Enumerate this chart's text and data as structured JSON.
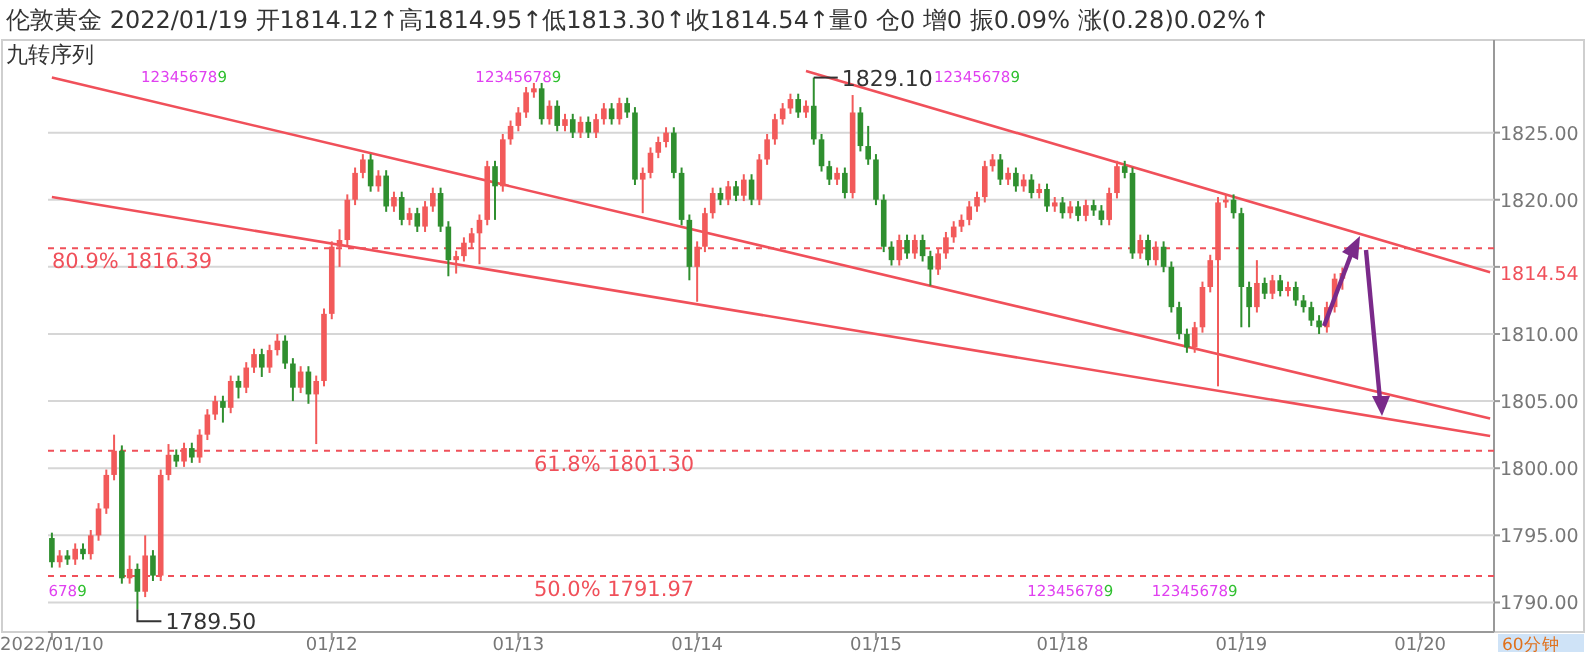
{
  "chart_data": {
    "type": "candlestick",
    "title": "伦敦黄金 2022/01/19 开1814.12↑高1814.95↑低1813.30↑收1814.54↑量0 仓0 增0 振0.09% 涨(0.28)0.02%↑",
    "subtitle": "九转序列",
    "categories": [
      "2022/01/10",
      null,
      null,
      null,
      null,
      null,
      null,
      null,
      null,
      null,
      null,
      null,
      null,
      null,
      null,
      null,
      null,
      null,
      null,
      null,
      null,
      null,
      null,
      null,
      null,
      null,
      null,
      null,
      null,
      null,
      null,
      null,
      null,
      null,
      null,
      null,
      "01/12",
      null,
      null,
      null,
      null,
      null,
      null,
      null,
      null,
      null,
      null,
      null,
      null,
      null,
      null,
      null,
      null,
      null,
      null,
      null,
      null,
      null,
      null,
      null,
      "01/13",
      null,
      null,
      null,
      null,
      null,
      null,
      null,
      null,
      null,
      null,
      null,
      null,
      null,
      null,
      null,
      null,
      null,
      null,
      null,
      null,
      null,
      null,
      "01/14",
      null,
      null,
      null,
      null,
      null,
      null,
      null,
      null,
      null,
      null,
      null,
      null,
      null,
      null,
      null,
      null,
      null,
      null,
      null,
      null,
      null,
      null,
      "01/15",
      null,
      null,
      null,
      null,
      null,
      null,
      null,
      null,
      null,
      null,
      null,
      null,
      null,
      null,
      null,
      null,
      null,
      null,
      null,
      null,
      null,
      null,
      null,
      "01/18",
      null,
      null,
      null,
      null,
      null,
      null,
      null,
      null,
      null,
      null,
      null,
      null,
      null,
      null,
      null,
      null,
      null,
      null,
      null,
      null,
      null,
      null,
      "01/19",
      null,
      null,
      null,
      null,
      null,
      null,
      null,
      null,
      null,
      null,
      null,
      null,
      null,
      null,
      null,
      null,
      null,
      null,
      null,
      null,
      null,
      null,
      "01/20",
      null,
      null,
      null,
      null,
      null,
      null,
      null,
      null,
      null
    ],
    "ohlc": [
      [
        1794.8,
        1795.2,
        1792.6,
        1793.0
      ],
      [
        1793.0,
        1793.9,
        1792.6,
        1793.5
      ],
      [
        1793.5,
        1793.9,
        1792.8,
        1793.2
      ],
      [
        1793.2,
        1794.4,
        1792.8,
        1794.0
      ],
      [
        1794.0,
        1794.4,
        1793.2,
        1793.6
      ],
      [
        1793.6,
        1795.4,
        1793.2,
        1795.0
      ],
      [
        1795.0,
        1797.4,
        1794.6,
        1797.0
      ],
      [
        1797.0,
        1799.9,
        1796.6,
        1799.5
      ],
      [
        1799.5,
        1802.5,
        1799.1,
        1801.3
      ],
      [
        1801.3,
        1801.7,
        1791.4,
        1791.8
      ],
      [
        1791.8,
        1793.5,
        1791.4,
        1792.5
      ],
      [
        1792.5,
        1792.9,
        1789.5,
        1790.8
      ],
      [
        1790.8,
        1795.0,
        1790.4,
        1793.5
      ],
      [
        1793.5,
        1793.9,
        1791.6,
        1792.0
      ],
      [
        1792.0,
        1799.9,
        1791.6,
        1799.5
      ],
      [
        1799.5,
        1801.8,
        1799.1,
        1801.0
      ],
      [
        1801.0,
        1801.4,
        1800.1,
        1800.5
      ],
      [
        1800.5,
        1801.9,
        1800.1,
        1801.5
      ],
      [
        1801.5,
        1801.9,
        1800.4,
        1800.8
      ],
      [
        1800.8,
        1802.9,
        1800.4,
        1802.5
      ],
      [
        1802.5,
        1804.4,
        1802.1,
        1804.0
      ],
      [
        1804.0,
        1805.4,
        1803.6,
        1805.0
      ],
      [
        1805.0,
        1805.4,
        1803.4,
        1804.5
      ],
      [
        1804.5,
        1806.9,
        1804.1,
        1806.5
      ],
      [
        1806.5,
        1806.9,
        1805.2,
        1806.0
      ],
      [
        1806.0,
        1807.9,
        1805.6,
        1807.5
      ],
      [
        1807.5,
        1808.9,
        1807.1,
        1808.5
      ],
      [
        1808.5,
        1808.9,
        1806.8,
        1807.5
      ],
      [
        1807.5,
        1809.2,
        1807.1,
        1808.8
      ],
      [
        1808.8,
        1810.0,
        1808.4,
        1809.5
      ],
      [
        1809.5,
        1809.9,
        1807.4,
        1807.8
      ],
      [
        1807.8,
        1808.2,
        1805.0,
        1806.0
      ],
      [
        1806.0,
        1807.6,
        1805.6,
        1807.2
      ],
      [
        1807.2,
        1807.6,
        1804.8,
        1805.5
      ],
      [
        1805.5,
        1806.9,
        1801.8,
        1806.5
      ],
      [
        1806.5,
        1811.9,
        1806.1,
        1811.5
      ],
      [
        1811.5,
        1816.9,
        1811.1,
        1816.5
      ],
      [
        1816.5,
        1817.8,
        1815.0,
        1817.0
      ],
      [
        1817.0,
        1820.4,
        1816.6,
        1820.0
      ],
      [
        1820.0,
        1822.4,
        1819.6,
        1822.0
      ],
      [
        1822.0,
        1823.4,
        1821.6,
        1823.0
      ],
      [
        1823.0,
        1823.4,
        1820.6,
        1821.0
      ],
      [
        1821.0,
        1822.2,
        1820.6,
        1821.8
      ],
      [
        1821.8,
        1822.2,
        1819.1,
        1819.5
      ],
      [
        1819.5,
        1820.6,
        1819.1,
        1820.2
      ],
      [
        1820.2,
        1820.6,
        1818.1,
        1818.5
      ],
      [
        1818.5,
        1819.4,
        1818.1,
        1819.0
      ],
      [
        1819.0,
        1819.4,
        1817.6,
        1818.0
      ],
      [
        1818.0,
        1819.9,
        1817.6,
        1819.5
      ],
      [
        1819.5,
        1820.9,
        1819.1,
        1820.5
      ],
      [
        1820.5,
        1820.9,
        1817.6,
        1818.0
      ],
      [
        1818.0,
        1818.4,
        1814.3,
        1815.5
      ],
      [
        1815.5,
        1816.2,
        1814.5,
        1815.8
      ],
      [
        1815.8,
        1817.2,
        1815.4,
        1816.8
      ],
      [
        1816.8,
        1817.9,
        1816.4,
        1817.5
      ],
      [
        1817.5,
        1818.9,
        1815.2,
        1818.5
      ],
      [
        1818.5,
        1822.9,
        1818.1,
        1822.5
      ],
      [
        1822.5,
        1822.9,
        1818.5,
        1821.0
      ],
      [
        1821.0,
        1824.9,
        1820.6,
        1824.5
      ],
      [
        1824.5,
        1825.9,
        1824.1,
        1825.5
      ],
      [
        1825.5,
        1826.9,
        1825.1,
        1826.5
      ],
      [
        1826.5,
        1828.4,
        1826.1,
        1828.0
      ],
      [
        1828.0,
        1828.7,
        1827.6,
        1828.3
      ],
      [
        1828.3,
        1828.7,
        1825.6,
        1826.0
      ],
      [
        1826.0,
        1827.4,
        1825.6,
        1827.0
      ],
      [
        1827.0,
        1827.4,
        1825.1,
        1825.5
      ],
      [
        1825.5,
        1826.4,
        1825.1,
        1826.0
      ],
      [
        1826.0,
        1826.4,
        1824.6,
        1825.0
      ],
      [
        1825.0,
        1826.2,
        1824.6,
        1825.8
      ],
      [
        1825.8,
        1826.2,
        1824.6,
        1825.0
      ],
      [
        1825.0,
        1826.4,
        1824.6,
        1826.0
      ],
      [
        1826.0,
        1827.2,
        1825.6,
        1826.8
      ],
      [
        1826.8,
        1827.2,
        1825.6,
        1826.0
      ],
      [
        1826.0,
        1827.6,
        1825.6,
        1827.2
      ],
      [
        1827.2,
        1827.6,
        1826.1,
        1826.5
      ],
      [
        1826.5,
        1826.9,
        1821.1,
        1821.5
      ],
      [
        1821.5,
        1822.4,
        1819.0,
        1822.0
      ],
      [
        1822.0,
        1823.9,
        1821.6,
        1823.5
      ],
      [
        1823.5,
        1824.7,
        1823.1,
        1824.3
      ],
      [
        1824.3,
        1825.4,
        1823.9,
        1825.0
      ],
      [
        1825.0,
        1825.4,
        1821.6,
        1822.0
      ],
      [
        1822.0,
        1822.4,
        1818.1,
        1818.5
      ],
      [
        1818.5,
        1818.9,
        1814.0,
        1815.0
      ],
      [
        1815.0,
        1816.9,
        1812.4,
        1816.5
      ],
      [
        1816.5,
        1819.4,
        1816.1,
        1819.0
      ],
      [
        1819.0,
        1820.9,
        1818.6,
        1820.5
      ],
      [
        1820.5,
        1820.9,
        1819.6,
        1820.0
      ],
      [
        1820.0,
        1821.4,
        1819.6,
        1821.0
      ],
      [
        1821.0,
        1821.4,
        1819.9,
        1820.3
      ],
      [
        1820.3,
        1821.9,
        1819.9,
        1821.5
      ],
      [
        1821.5,
        1821.9,
        1819.6,
        1820.0
      ],
      [
        1820.0,
        1823.4,
        1819.6,
        1823.0
      ],
      [
        1823.0,
        1824.9,
        1822.6,
        1824.5
      ],
      [
        1824.5,
        1826.4,
        1824.1,
        1826.0
      ],
      [
        1826.0,
        1827.2,
        1825.6,
        1826.8
      ],
      [
        1826.8,
        1827.9,
        1826.4,
        1827.5
      ],
      [
        1827.5,
        1827.9,
        1826.1,
        1826.5
      ],
      [
        1826.5,
        1827.4,
        1826.1,
        1827.0
      ],
      [
        1827.0,
        1829.1,
        1824.1,
        1824.5
      ],
      [
        1824.5,
        1824.9,
        1822.1,
        1822.5
      ],
      [
        1822.5,
        1822.9,
        1821.1,
        1821.5
      ],
      [
        1821.5,
        1822.4,
        1821.1,
        1822.0
      ],
      [
        1822.0,
        1822.4,
        1820.1,
        1820.5
      ],
      [
        1820.5,
        1827.8,
        1820.1,
        1826.5
      ],
      [
        1826.5,
        1826.9,
        1823.6,
        1824.0
      ],
      [
        1824.0,
        1825.5,
        1822.6,
        1823.0
      ],
      [
        1823.0,
        1823.4,
        1819.6,
        1820.0
      ],
      [
        1820.0,
        1820.4,
        1816.1,
        1816.5
      ],
      [
        1816.5,
        1816.9,
        1815.1,
        1815.5
      ],
      [
        1815.5,
        1817.4,
        1815.1,
        1817.0
      ],
      [
        1817.0,
        1817.4,
        1815.6,
        1816.0
      ],
      [
        1816.0,
        1817.4,
        1815.6,
        1817.0
      ],
      [
        1817.0,
        1817.4,
        1815.4,
        1815.8
      ],
      [
        1815.8,
        1816.2,
        1813.6,
        1814.8
      ],
      [
        1814.8,
        1816.4,
        1814.4,
        1816.0
      ],
      [
        1816.0,
        1817.6,
        1815.6,
        1817.2
      ],
      [
        1817.2,
        1818.4,
        1816.8,
        1818.0
      ],
      [
        1818.0,
        1818.9,
        1817.6,
        1818.5
      ],
      [
        1818.5,
        1819.9,
        1818.1,
        1819.5
      ],
      [
        1819.5,
        1820.6,
        1819.1,
        1820.2
      ],
      [
        1820.2,
        1822.9,
        1819.8,
        1822.5
      ],
      [
        1822.5,
        1823.4,
        1822.1,
        1823.0
      ],
      [
        1823.0,
        1823.4,
        1821.1,
        1821.5
      ],
      [
        1821.5,
        1822.4,
        1821.1,
        1822.0
      ],
      [
        1822.0,
        1822.4,
        1820.6,
        1821.0
      ],
      [
        1821.0,
        1821.9,
        1820.6,
        1821.5
      ],
      [
        1821.5,
        1821.9,
        1820.1,
        1820.5
      ],
      [
        1820.5,
        1821.2,
        1820.1,
        1820.8
      ],
      [
        1820.8,
        1821.2,
        1819.1,
        1819.5
      ],
      [
        1819.5,
        1820.2,
        1819.1,
        1819.8
      ],
      [
        1819.8,
        1820.2,
        1818.6,
        1819.0
      ],
      [
        1819.0,
        1819.9,
        1818.6,
        1819.5
      ],
      [
        1819.5,
        1819.9,
        1818.4,
        1818.8
      ],
      [
        1818.8,
        1820.0,
        1818.4,
        1819.6
      ],
      [
        1819.6,
        1820.0,
        1818.8,
        1819.2
      ],
      [
        1819.2,
        1819.6,
        1818.1,
        1818.5
      ],
      [
        1818.5,
        1820.9,
        1818.1,
        1820.5
      ],
      [
        1820.5,
        1822.9,
        1820.1,
        1822.5
      ],
      [
        1822.5,
        1822.9,
        1821.6,
        1822.0
      ],
      [
        1822.0,
        1822.4,
        1815.6,
        1816.0
      ],
      [
        1816.0,
        1817.4,
        1815.6,
        1817.0
      ],
      [
        1817.0,
        1817.4,
        1815.1,
        1815.5
      ],
      [
        1815.5,
        1816.9,
        1815.1,
        1816.5
      ],
      [
        1816.5,
        1816.9,
        1814.6,
        1815.0
      ],
      [
        1815.0,
        1815.4,
        1811.6,
        1812.0
      ],
      [
        1812.0,
        1812.4,
        1809.6,
        1810.0
      ],
      [
        1810.0,
        1810.4,
        1808.6,
        1809.0
      ],
      [
        1809.0,
        1810.9,
        1808.6,
        1810.5
      ],
      [
        1810.5,
        1813.9,
        1810.1,
        1813.5
      ],
      [
        1813.5,
        1815.9,
        1813.1,
        1815.5
      ],
      [
        1815.5,
        1820.2,
        1806.1,
        1819.8
      ],
      [
        1819.8,
        1820.4,
        1819.4,
        1820.0
      ],
      [
        1820.0,
        1820.4,
        1818.6,
        1819.0
      ],
      [
        1819.0,
        1819.4,
        1810.5,
        1813.5
      ],
      [
        1813.5,
        1813.9,
        1810.5,
        1812.0
      ],
      [
        1812.0,
        1815.5,
        1811.6,
        1813.8
      ],
      [
        1813.8,
        1814.2,
        1812.6,
        1813.0
      ],
      [
        1813.0,
        1814.4,
        1812.6,
        1814.0
      ],
      [
        1814.0,
        1814.4,
        1812.8,
        1813.2
      ],
      [
        1813.2,
        1813.9,
        1812.8,
        1813.5
      ],
      [
        1813.5,
        1813.9,
        1812.1,
        1812.5
      ],
      [
        1812.5,
        1812.9,
        1811.6,
        1812.0
      ],
      [
        1812.0,
        1812.4,
        1810.6,
        1811.0
      ],
      [
        1811.0,
        1811.4,
        1810.0,
        1810.5
      ],
      [
        1810.5,
        1812.4,
        1810.1,
        1812.0
      ],
      [
        1812.0,
        1814.5,
        1811.6,
        1814.12
      ],
      [
        1814.12,
        1814.95,
        1813.3,
        1814.54
      ],
      null,
      null,
      null,
      null,
      null,
      null,
      null,
      null,
      null,
      null,
      null,
      null,
      null,
      null,
      null,
      null,
      null,
      null,
      null
    ],
    "series": [
      {
        "type": "line",
        "color": "#f0505a",
        "values": [
          1829.1,
          null,
          null,
          null,
          null,
          null,
          null,
          null,
          null,
          null,
          null,
          null,
          null,
          null,
          null,
          null,
          null,
          null,
          null,
          null,
          null,
          null,
          null,
          null,
          null,
          null,
          null,
          null,
          null,
          null,
          null,
          null,
          null,
          null,
          null,
          null,
          null,
          null,
          null,
          null,
          null,
          null,
          null,
          null,
          null,
          null,
          null,
          null,
          null,
          null,
          null,
          null,
          null,
          null,
          null,
          null,
          null,
          null,
          null,
          null,
          null,
          null,
          null,
          null,
          null,
          null,
          null,
          null,
          null,
          null,
          null,
          null,
          null,
          null,
          null,
          null,
          null,
          null,
          null,
          null,
          null,
          null,
          null,
          null,
          null,
          null,
          null,
          null,
          null,
          null,
          null,
          null,
          null,
          null,
          null,
          null,
          null,
          null,
          null,
          null,
          null,
          null,
          null,
          null,
          null,
          null,
          null,
          null,
          null,
          null,
          null,
          null,
          null,
          null,
          null,
          null,
          null,
          null,
          null,
          null,
          null,
          null,
          null,
          null,
          null,
          null,
          null,
          null,
          null,
          null,
          null,
          null,
          null,
          null,
          null,
          null,
          null,
          null,
          null,
          null,
          null,
          null,
          null,
          null,
          null,
          null,
          null,
          null,
          null,
          null,
          null,
          null,
          null,
          null,
          null,
          null,
          null,
          null,
          null,
          null,
          null,
          null,
          null,
          null,
          null,
          null,
          null,
          null,
          null,
          null,
          null,
          null,
          null,
          null,
          null,
          null,
          null,
          null,
          null,
          null,
          null,
          null,
          null,
          null,
          null,
          1803.7
        ]
      },
      {
        "type": "line",
        "color": "#f0505a",
        "values": [
          1820.2,
          null,
          null,
          null,
          null,
          null,
          null,
          null,
          null,
          null,
          null,
          null,
          null,
          null,
          null,
          null,
          null,
          null,
          null,
          null,
          null,
          null,
          null,
          null,
          null,
          null,
          null,
          null,
          null,
          null,
          null,
          null,
          null,
          null,
          null,
          null,
          null,
          null,
          null,
          null,
          null,
          null,
          null,
          null,
          null,
          null,
          null,
          null,
          null,
          null,
          null,
          null,
          null,
          null,
          null,
          null,
          null,
          null,
          null,
          null,
          null,
          null,
          null,
          null,
          null,
          null,
          null,
          null,
          null,
          null,
          null,
          null,
          null,
          null,
          null,
          null,
          null,
          null,
          null,
          null,
          null,
          null,
          null,
          null,
          null,
          null,
          null,
          null,
          null,
          null,
          null,
          null,
          null,
          null,
          null,
          null,
          null,
          null,
          null,
          null,
          null,
          null,
          null,
          null,
          null,
          null,
          null,
          null,
          null,
          null,
          null,
          null,
          null,
          null,
          null,
          null,
          null,
          null,
          null,
          null,
          null,
          null,
          null,
          null,
          null,
          null,
          null,
          null,
          null,
          null,
          null,
          null,
          null,
          null,
          null,
          null,
          null,
          null,
          null,
          null,
          null,
          null,
          null,
          null,
          null,
          null,
          null,
          null,
          null,
          null,
          null,
          null,
          null,
          null,
          null,
          null,
          null,
          null,
          null,
          null,
          null,
          null,
          null,
          null,
          null,
          null,
          null,
          null,
          null,
          null,
          null,
          null,
          null,
          null,
          null,
          null,
          null,
          null,
          null,
          null,
          null,
          null,
          null,
          null,
          null,
          1802.4
        ]
      },
      {
        "type": "line",
        "color": "#f0505a",
        "values": [
          null,
          null,
          null,
          null,
          null,
          null,
          null,
          null,
          null,
          null,
          null,
          null,
          null,
          null,
          null,
          null,
          null,
          null,
          null,
          null,
          null,
          null,
          null,
          null,
          null,
          null,
          null,
          null,
          null,
          null,
          null,
          null,
          null,
          null,
          null,
          null,
          null,
          null,
          null,
          null,
          null,
          null,
          null,
          null,
          null,
          null,
          null,
          null,
          null,
          null,
          null,
          null,
          null,
          null,
          null,
          null,
          null,
          null,
          null,
          null,
          null,
          null,
          null,
          null,
          null,
          null,
          null,
          null,
          null,
          null,
          null,
          null,
          null,
          null,
          null,
          null,
          null,
          null,
          null,
          null,
          null,
          null,
          null,
          null,
          null,
          null,
          null,
          null,
          null,
          null,
          null,
          null,
          null,
          null,
          null,
          null,
          null,
          1829.6,
          null,
          null,
          null,
          null,
          null,
          null,
          null,
          null,
          null,
          null,
          null,
          null,
          null,
          null,
          null,
          null,
          null,
          null,
          null,
          null,
          null,
          null,
          null,
          null,
          null,
          null,
          null,
          null,
          null,
          null,
          null,
          null,
          null,
          null,
          null,
          null,
          null,
          null,
          null,
          null,
          null,
          null,
          null,
          null,
          null,
          null,
          null,
          null,
          null,
          null,
          null,
          null,
          null,
          null,
          null,
          null,
          null,
          null,
          null,
          null,
          null,
          null,
          null,
          null,
          null,
          null,
          null,
          null,
          null,
          null,
          null,
          null,
          null,
          null,
          null,
          null,
          null,
          null,
          null,
          null,
          null,
          null,
          null,
          null,
          null,
          null,
          null,
          1814.6
        ]
      }
    ],
    "ylim": [
      1787.8,
      1831.9
    ],
    "yticks": [
      {
        "value": 1790,
        "label": "1790.00"
      },
      {
        "value": 1795,
        "label": "1795.00"
      },
      {
        "value": 1800,
        "label": "1800.00"
      },
      {
        "value": 1805,
        "label": "1805.00"
      },
      {
        "value": 1810,
        "label": "1810.00"
      },
      {
        "value": 1815,
        "label": null
      },
      {
        "value": 1820,
        "label": "1820.00"
      },
      {
        "value": 1825,
        "label": "1825.00"
      }
    ],
    "grid": "y",
    "ref_lines": [
      {
        "axis": "y",
        "value": 1816.39,
        "label": "80.9% 1816.39",
        "color": "#f0505a",
        "line_style": "dashed"
      },
      {
        "axis": "y",
        "value": 1801.3,
        "label": "61.8% 1801.30",
        "color": "#f0505a",
        "line_style": "dashed"
      },
      {
        "axis": "y",
        "value": 1791.97,
        "label": "50.0% 1791.97",
        "color": "#f0505a",
        "line_style": "dashed"
      }
    ],
    "annotations": [
      "1829.10",
      "1789.50",
      "1814.54",
      "123456789",
      "123456789",
      "123456789",
      "123456789",
      "123456789",
      "6789",
      "60分钟"
    ]
  }
}
